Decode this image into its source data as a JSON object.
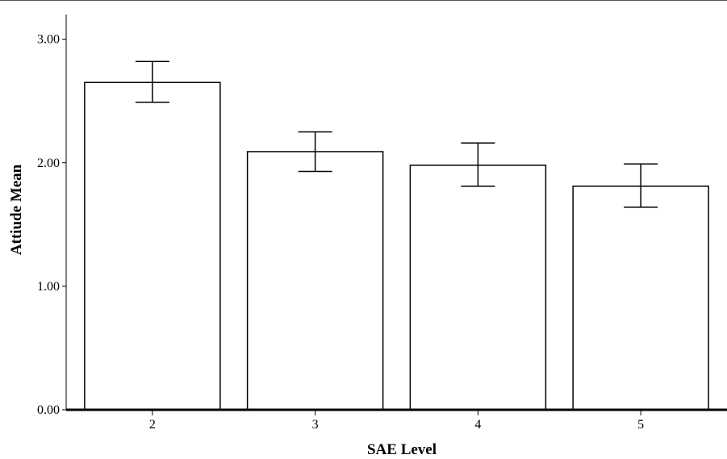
{
  "chart_data": {
    "type": "bar",
    "xlabel": "SAE Level",
    "ylabel": "Attiude Mean",
    "categories": [
      "2",
      "3",
      "4",
      "5"
    ],
    "values": [
      2.65,
      2.09,
      1.98,
      1.81
    ],
    "error_bars": {
      "lower": [
        2.49,
        1.93,
        1.81,
        1.64
      ],
      "upper": [
        2.82,
        2.25,
        2.16,
        1.99
      ]
    },
    "ylim": [
      0,
      3.2
    ],
    "yticks": [
      "0.00",
      "1.00",
      "2.00",
      "3.00"
    ],
    "grid": false,
    "legend": "none",
    "colors": {
      "bar_fill": "#ffffff",
      "bar_stroke": "#000000",
      "axis": "#000000"
    }
  }
}
